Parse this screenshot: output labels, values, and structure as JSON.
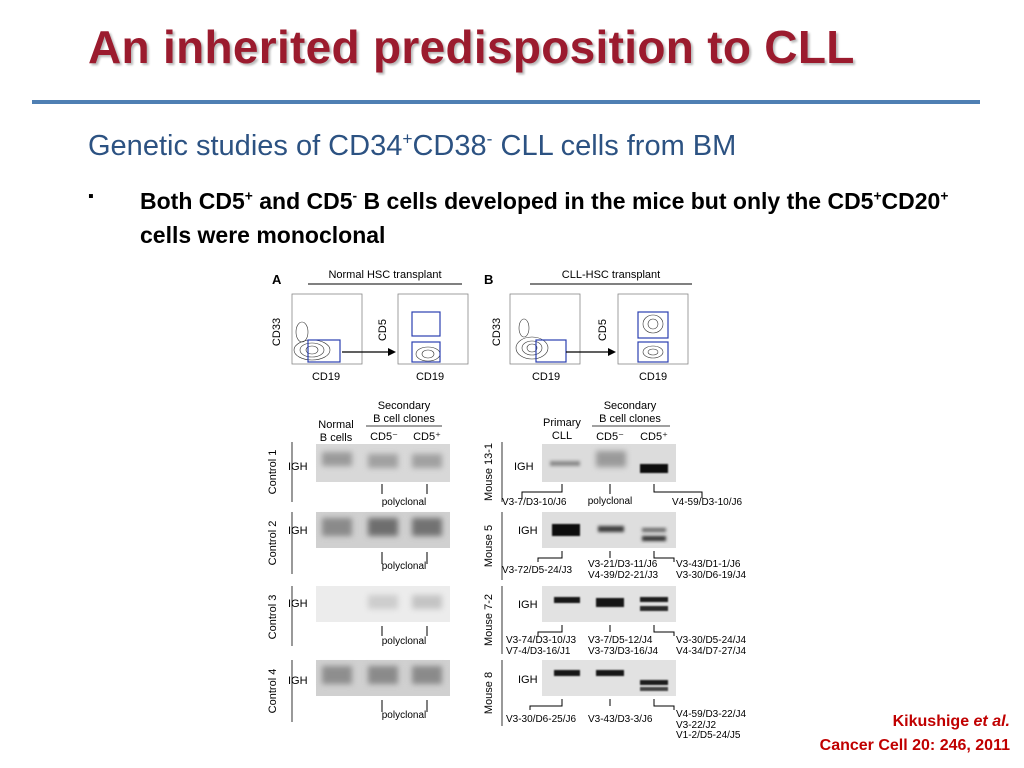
{
  "slide": {
    "title": "An inherited predisposition to CLL",
    "subtitle": {
      "pre": "Genetic studies of CD34",
      "sup1": "+",
      "mid": "CD38",
      "sup2": "-",
      "post": " CLL cells from BM"
    },
    "bullet": {
      "marker": "▪",
      "t1": "Both CD5",
      "s1": "+",
      "t2": " and CD5",
      "s2": "-",
      "t3": " B cells developed in the mice but only the CD5",
      "s3": "+",
      "t4": "CD20",
      "s4": "+",
      "t5": " cells were monoclonal"
    },
    "citation": {
      "author": "Kikushige ",
      "etal": "et al.",
      "journal": "Cancer Cell 20: 246, 2011"
    }
  },
  "figure": {
    "panel_a": {
      "letter": "A",
      "title": "Normal HSC transplant",
      "y1": "CD33",
      "x1": "CD19",
      "y2": "CD5",
      "x2": "CD19"
    },
    "panel_b": {
      "letter": "B",
      "title": "CLL-HSC transplant",
      "y1": "CD33",
      "x1": "CD19",
      "y2": "CD5",
      "x2": "CD19"
    },
    "left_gels": {
      "header": {
        "col1a": "Normal",
        "col1b": "B cells",
        "sec1": "Secondary",
        "sec2": "B cell clones",
        "col2": "CD5⁻",
        "col3": "CD5⁺"
      },
      "rows": [
        {
          "label": "Control 1",
          "gene": "IGH",
          "note": "polyclonal"
        },
        {
          "label": "Control 2",
          "gene": "IGH",
          "note": "polyclonal"
        },
        {
          "label": "Control 3",
          "gene": "IGH",
          "note": "polyclonal"
        },
        {
          "label": "Control 4",
          "gene": "IGH",
          "note": "polyclonal"
        }
      ]
    },
    "right_gels": {
      "header": {
        "col1a": "Primary",
        "col1b": "CLL",
        "sec1": "Secondary",
        "sec2": "B cell clones",
        "col2": "CD5⁻",
        "col3": "CD5⁺"
      },
      "rows": [
        {
          "label": "Mouse 13-1",
          "gene": "IGH",
          "a1": "V3-7/D3-10/J6",
          "a2": "",
          "b1": "polyclonal",
          "b2": "",
          "c1": "V4-59/D3-10/J6",
          "c2": "",
          "c3": ""
        },
        {
          "label": "Mouse 5",
          "gene": "IGH",
          "a1": "V3-72/D5-24/J3",
          "a2": "",
          "b1": "V3-21/D3-11/J6",
          "b2": "V4-39/D2-21/J3",
          "c1": "V3-43/D1-1/J6",
          "c2": "V3-30/D6-19/J4",
          "c3": ""
        },
        {
          "label": "Mouse 7-2",
          "gene": "IGH",
          "a1": "V3-74/D3-10/J3",
          "a2": "V7-4/D3-16/J1",
          "b1": "V3-7/D5-12/J4",
          "b2": "V3-73/D3-16/J4",
          "c1": "V3-30/D5-24/J4",
          "c2": "V4-34/D7-27/J4",
          "c3": ""
        },
        {
          "label": "Mouse 8",
          "gene": "IGH",
          "a1": "V3-30/D6-25/J6",
          "a2": "",
          "b1": "V3-43/D3-3/J6",
          "b2": "",
          "c1": "V4-59/D3-22/J4",
          "c2": "V3-22/J2",
          "c3": "V1-2/D5-24/J5"
        }
      ]
    }
  }
}
